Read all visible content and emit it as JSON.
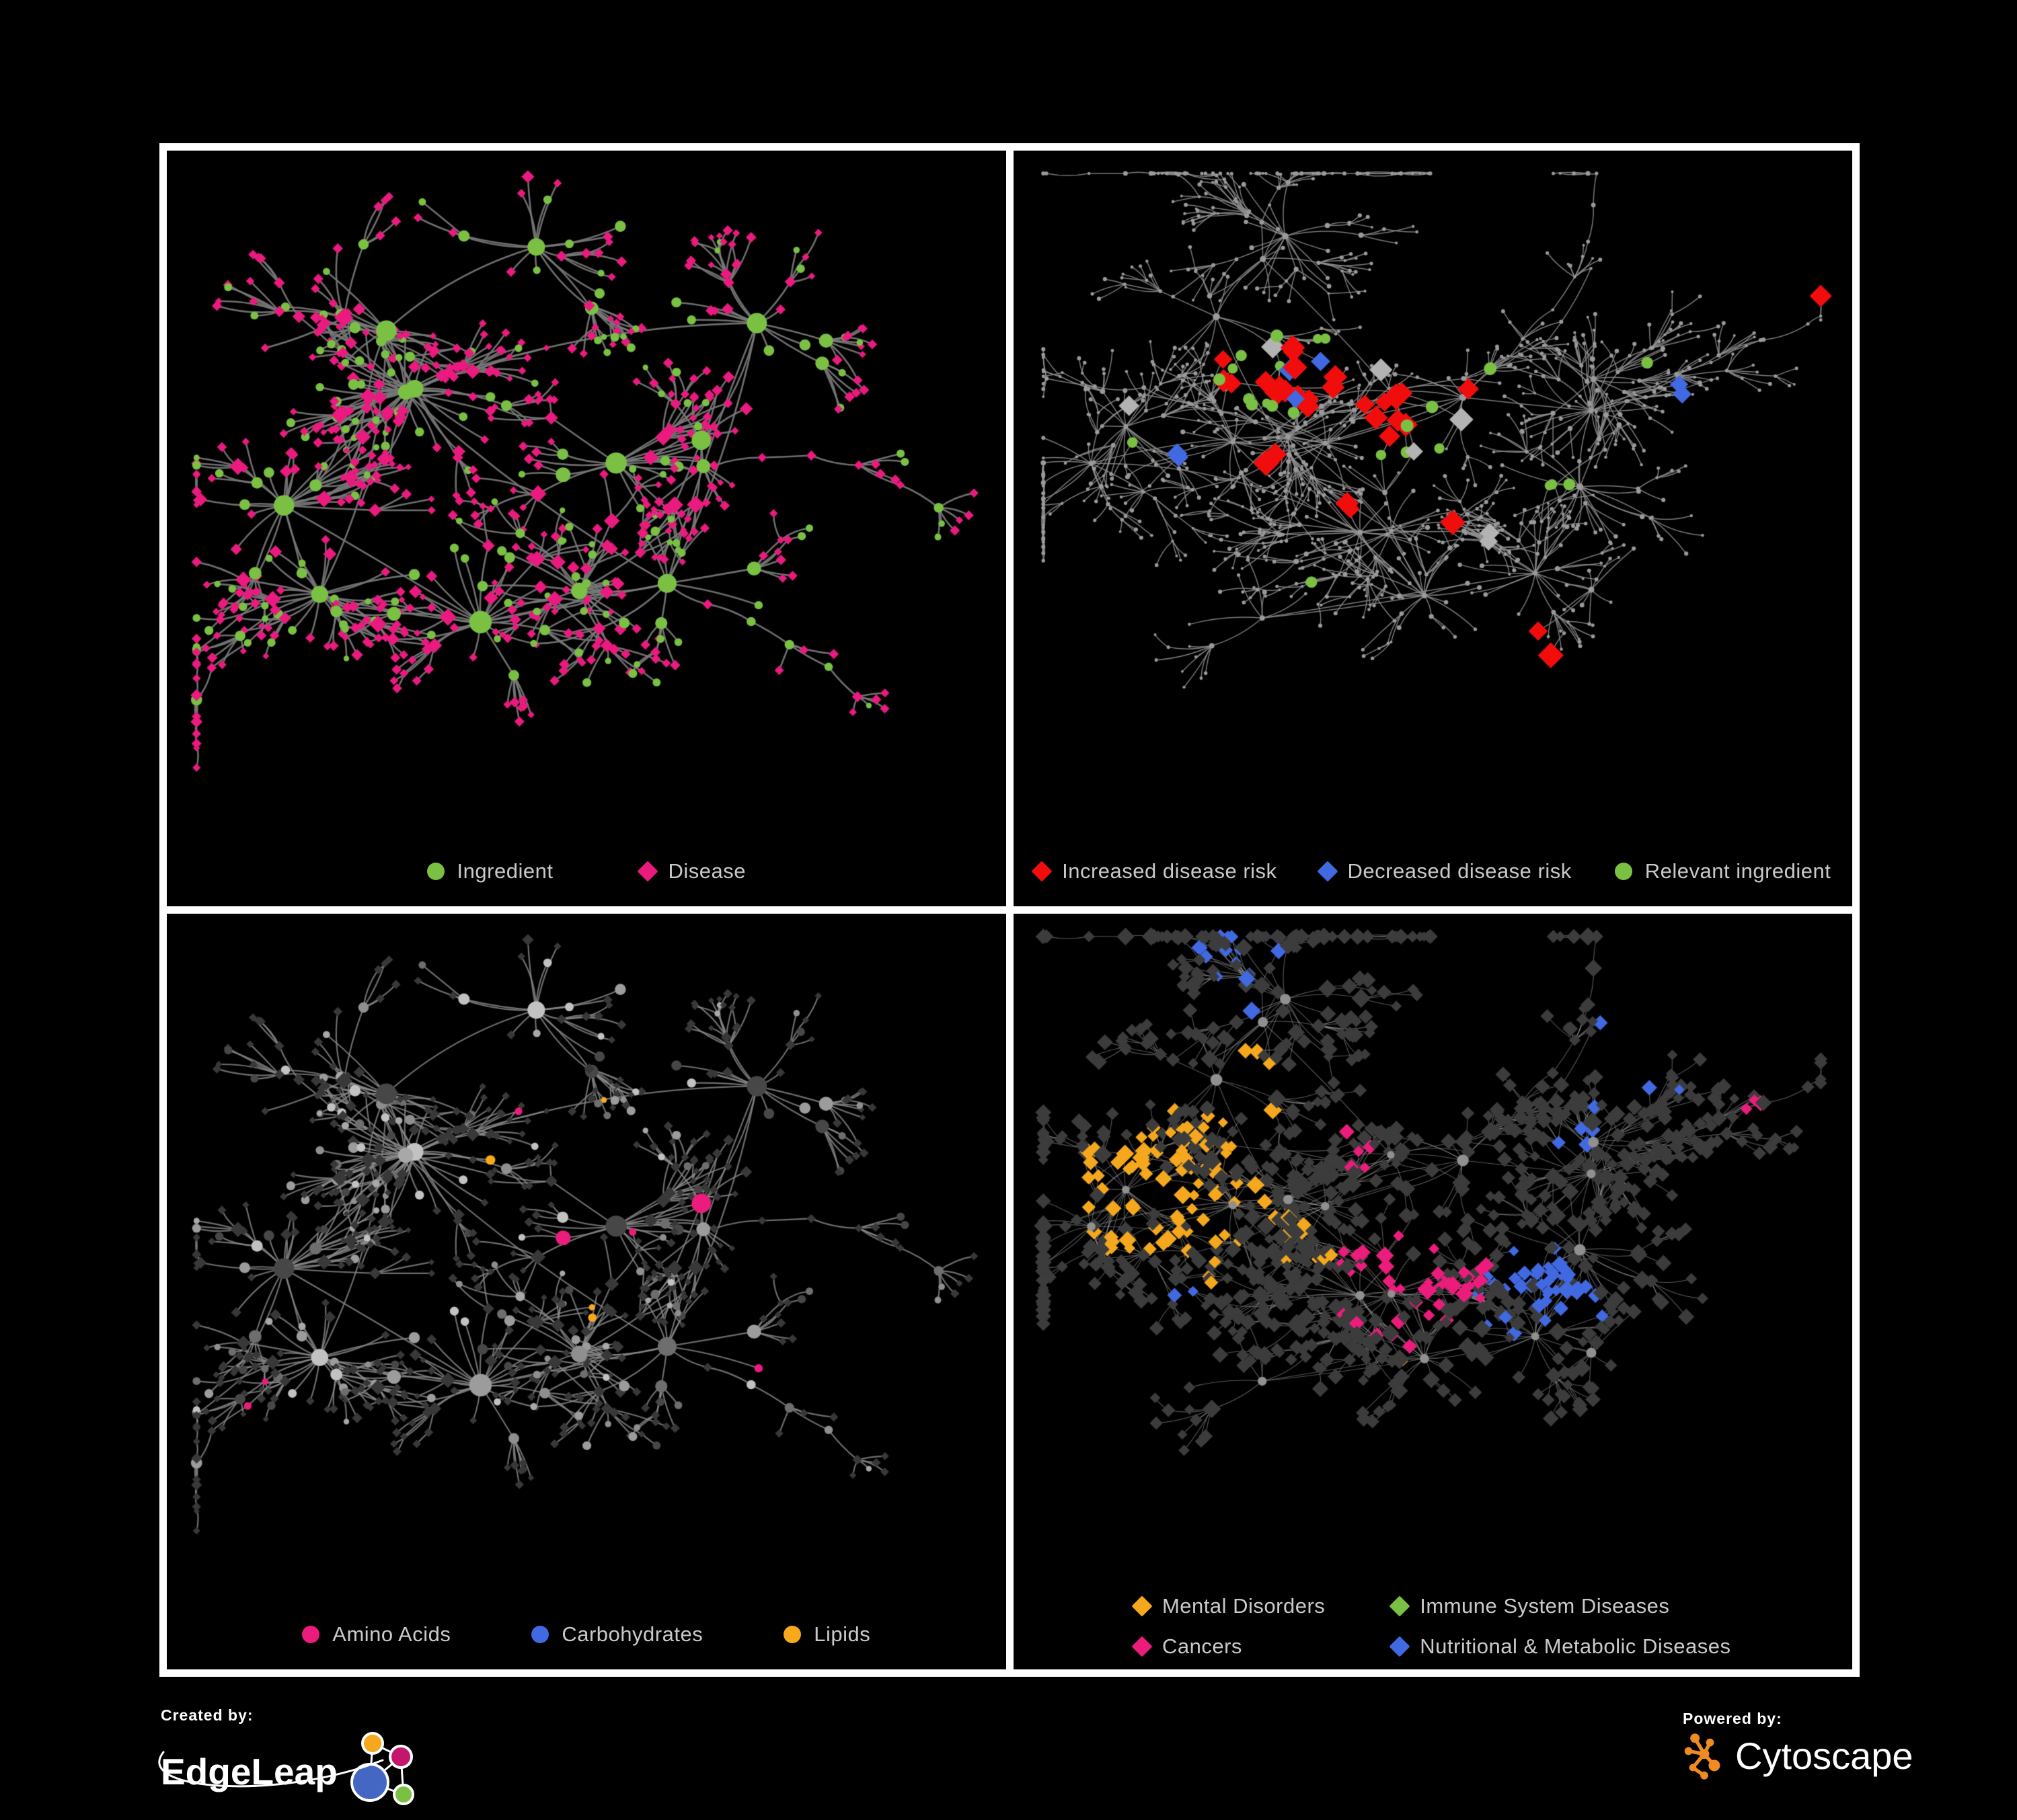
{
  "figure": {
    "background": "#000000",
    "frame_color": "#ffffff"
  },
  "footer": {
    "created_by_label": "Created by:",
    "edgeleap_name": "EdgeLeap",
    "powered_by_label": "Powered by:",
    "cytoscape_name": "Cytoscape",
    "edgeleap_colors": {
      "orange": "#F5A81D",
      "magenta": "#C4176B",
      "blue": "#4467C4",
      "green": "#7AC143"
    },
    "cytoscape_color": "#EF8B22"
  },
  "layouts": {
    "A": {
      "seed": 20417,
      "clusters": 13,
      "burst": 15,
      "r1": 0.085,
      "subProb": 0.34,
      "leaves": 7,
      "r2": 0.052,
      "twigProb": 0.16,
      "arms": 5,
      "crossLinks": 46,
      "hubLinks": 6,
      "aspect": 1.12,
      "circProb": {
        "hub": 0.85,
        "sub": 0.5,
        "mid": 0.4,
        "leaf": 0.22
      }
    },
    "B": {
      "seed": 91731,
      "clusters": 19,
      "burst": 10,
      "r1": 0.07,
      "subProb": 0.42,
      "leaves": 7,
      "r2": 0.05,
      "twigProb": 0.3,
      "arms": 7,
      "crossLinks": 60,
      "hubLinks": 7,
      "aspect": 1.12,
      "circProb": {
        "hub": 1,
        "sub": 0,
        "mid": 0,
        "leaf": 0
      }
    }
  },
  "chart_data": [
    {
      "type": "network",
      "panel": "top-left",
      "description": "Ingredient-disease association network; green circle nodes are ingredients, pink diamond nodes are diseases, gray edges are associations",
      "nodes_estimate": 620,
      "edges_estimate": 680,
      "legend": [
        {
          "label": "Ingredient",
          "shape": "circle",
          "color": "#7AC143"
        },
        {
          "label": "Disease",
          "shape": "diamond",
          "color": "#EA1A7F"
        }
      ],
      "legend_gap": 130,
      "render": {
        "layout": "A",
        "seed": 311,
        "mode": "type-color",
        "circle_color": "#7AC143",
        "diamond_color": "#EA1A7F",
        "sizes": {
          "hub": 13,
          "sub": 8.5,
          "mid": 6.5,
          "leaf": 5.2
        },
        "edge": {
          "color": "#787878",
          "width": 2.6,
          "alpha": 0.92
        }
      }
    },
    {
      "type": "network",
      "panel": "top-right",
      "description": "Disease-risk overlay network; highlighted diamonds show increased (red) / decreased (blue) disease risk, green circles are relevant ingredients, small gray dots are other nodes",
      "nodes_estimate": 840,
      "edges_estimate": 900,
      "legend": [
        {
          "label": "Increased disease risk",
          "shape": "diamond",
          "color": "#F20D0D"
        },
        {
          "label": "Decreased disease risk",
          "shape": "diamond",
          "color": "#4169E1"
        },
        {
          "label": "Relevant ingredient",
          "shape": "circle",
          "color": "#7AC143"
        }
      ],
      "legend_gap": 64,
      "render": {
        "layout": "B",
        "seed": 522,
        "mode": "highlight",
        "base_color": "#9a9a9a",
        "sizes": {
          "hub": 4.2,
          "sub": 3.2,
          "mid": 2.8,
          "leaf": 2.4
        },
        "edge": {
          "color": "#8f8f8f",
          "width": 1.5,
          "alpha": 0.85
        },
        "highlights": [
          {
            "shape": "diamond",
            "color": "#F20D0D",
            "size": 13,
            "groups": [
              [
                0.33,
                0.32,
                0.1,
                13
              ],
              [
                0.45,
                0.38,
                0.09,
                9
              ],
              [
                0.25,
                0.3,
                0.05,
                3
              ],
              [
                0.56,
                0.34,
                0.03,
                1
              ],
              [
                0.52,
                0.55,
                0.03,
                2
              ],
              [
                0.4,
                0.52,
                0.03,
                2
              ],
              [
                0.63,
                0.72,
                0.04,
                2
              ],
              [
                0.95,
                0.1,
                0.02,
                1
              ],
              [
                0.3,
                0.44,
                0.03,
                2
              ]
            ]
          },
          {
            "shape": "diamond",
            "color": "#4169E1",
            "size": 12,
            "groups": [
              [
                0.81,
                0.335,
                0.035,
                2
              ],
              [
                0.335,
                0.3,
                0.03,
                2
              ],
              [
                0.345,
                0.34,
                0.02,
                1
              ],
              [
                0.185,
                0.435,
                0.02,
                2
              ]
            ]
          },
          {
            "shape": "diamond",
            "color": "#B3B3B3",
            "size": 12,
            "groups": [
              [
                0.285,
                0.285,
                0.02,
                1
              ],
              [
                0.47,
                0.41,
                0.02,
                1
              ],
              [
                0.525,
                0.37,
                0.02,
                1
              ],
              [
                0.565,
                0.55,
                0.025,
                2
              ],
              [
                0.13,
                0.365,
                0.02,
                1
              ],
              [
                0.44,
                0.3,
                0.015,
                1
              ]
            ]
          },
          {
            "shape": "circle",
            "color": "#7AC143",
            "size": 8,
            "groups": [
              [
                0.3,
                0.3,
                0.12,
                13
              ],
              [
                0.47,
                0.4,
                0.07,
                5
              ],
              [
                0.655,
                0.47,
                0.025,
                3
              ],
              [
                0.78,
                0.295,
                0.015,
                1
              ],
              [
                0.345,
                0.625,
                0.02,
                1
              ],
              [
                0.145,
                0.4,
                0.015,
                1
              ],
              [
                0.57,
                0.3,
                0.02,
                2
              ]
            ]
          }
        ]
      }
    },
    {
      "type": "network",
      "panel": "bottom-left",
      "description": "Same ingredient-disease network colored by ingredient chemical class; uncolored ingredients gray, diseases dark gray diamonds",
      "nodes_estimate": 620,
      "edges_estimate": 680,
      "legend": [
        {
          "label": "Amino Acids",
          "shape": "circle",
          "color": "#EC1C7D"
        },
        {
          "label": "Carbohydrates",
          "shape": "circle",
          "color": "#4169E1"
        },
        {
          "label": "Lipids",
          "shape": "circle",
          "color": "#F8A81B"
        }
      ],
      "legend_gap": 120,
      "render": {
        "layout": "A",
        "seed": 733,
        "mode": "class-color",
        "diamond_color": "#383838",
        "gray_palette": [
          "#a8a8a8",
          "#8f8f8f",
          "#c2c2c2",
          "#6e6e6e",
          "#474747",
          "#9c9c9c"
        ],
        "sizes": {
          "hub": 13,
          "sub": 8.5,
          "mid": 6.5,
          "leaf": 5.2
        },
        "edge": {
          "color": "#8a8a8a",
          "width": 2.2,
          "alpha": 0.8
        },
        "classes": [
          {
            "name": "Lipids",
            "color": "#F8A81B",
            "regions": [
              [
                0.46,
                0.2,
                0.13,
                0.75
              ],
              [
                0.4,
                0.33,
                0.07,
                0.45
              ],
              [
                0.52,
                0.57,
                0.045,
                0.9
              ],
              [
                0.57,
                0.13,
                0.05,
                0.4
              ],
              [
                0.68,
                0.47,
                0.03,
                0.5
              ]
            ]
          },
          {
            "name": "Carbohydrates",
            "color": "#4169E1",
            "regions": [
              [
                0.44,
                0.19,
                0.09,
                0.22
              ],
              [
                0.12,
                0.3,
                0.03,
                0.5
              ],
              [
                0.63,
                0.6,
                0.025,
                0.6
              ],
              [
                0.3,
                0.47,
                0.02,
                0.5
              ]
            ]
          },
          {
            "name": "Amino Acids",
            "color": "#EC1C7D",
            "regions": [
              [
                0.5,
                0.5,
                0.9,
                0.045
              ],
              [
                0.7,
                0.62,
                0.08,
                0.25
              ],
              [
                0.25,
                0.75,
                0.07,
                0.2
              ],
              [
                0.88,
                0.08,
                0.05,
                0.4
              ]
            ]
          }
        ]
      }
    },
    {
      "type": "network",
      "panel": "bottom-right",
      "description": "Same disease network colored by disease category; uncategorized diseases dark gray diamonds, hubs light gray circles",
      "nodes_estimate": 840,
      "edges_estimate": 900,
      "legend": [
        {
          "label": "Mental Disorders",
          "shape": "diamond",
          "color": "#F5A81D"
        },
        {
          "label": "Immune System Diseases",
          "shape": "diamond",
          "color": "#7AC143"
        },
        {
          "label": "Cancers",
          "shape": "diamond",
          "color": "#EC1C7D"
        },
        {
          "label": "Nutritional & Metabolic Diseases",
          "shape": "diamond",
          "color": "#4169E1"
        }
      ],
      "legend_columns": 2,
      "legend_gap": 100,
      "legend_row_gap": 24,
      "render": {
        "layout": "B",
        "seed": 944,
        "mode": "class-diamond",
        "base_color": "#3C3C3C",
        "hub_color": "#909090",
        "sizes": {
          "hub": 7,
          "sub": 9,
          "mid": 8.5,
          "leaf": 7.5
        },
        "edge": {
          "color": "#aaaaaa",
          "width": 1.15,
          "alpha": 0.5
        },
        "classes": [
          {
            "name": "Mental Disorders",
            "color": "#F5A81D",
            "regions": [
              [
                0.17,
                0.4,
                0.145,
                0.9
              ],
              [
                0.28,
                0.22,
                0.07,
                0.45
              ],
              [
                0.34,
                0.47,
                0.05,
                0.5
              ],
              [
                0.1,
                0.62,
                0.035,
                0.6
              ],
              [
                0.47,
                0.63,
                0.02,
                0.7
              ],
              [
                0.58,
                0.05,
                0.03,
                0.5
              ]
            ]
          },
          {
            "name": "Cancers",
            "color": "#EC1C7D",
            "regions": [
              [
                0.47,
                0.52,
                0.11,
                0.85
              ],
              [
                0.41,
                0.32,
                0.05,
                0.3
              ],
              [
                0.92,
                0.27,
                0.05,
                0.65
              ],
              [
                0.26,
                0.78,
                0.025,
                0.5
              ],
              [
                0.64,
                0.7,
                0.03,
                0.3
              ],
              [
                0.12,
                0.25,
                0.02,
                0.5
              ]
            ]
          },
          {
            "name": "Nutritional & Metabolic Diseases",
            "color": "#4169E1",
            "regions": [
              [
                0.635,
                0.555,
                0.085,
                0.85
              ],
              [
                0.8,
                0.16,
                0.11,
                0.5
              ],
              [
                0.7,
                0.32,
                0.06,
                0.4
              ],
              [
                0.28,
                0.06,
                0.09,
                0.45
              ],
              [
                0.55,
                0.84,
                0.05,
                0.5
              ],
              [
                0.88,
                0.45,
                0.06,
                0.45
              ],
              [
                0.38,
                0.92,
                0.04,
                0.45
              ],
              [
                0.93,
                0.08,
                0.04,
                0.5
              ],
              [
                0.18,
                0.55,
                0.03,
                0.3
              ]
            ]
          },
          {
            "name": "Immune System Diseases",
            "color": "#7AC143",
            "regions": [
              [
                0.49,
                0.38,
                0.02,
                0.8
              ],
              [
                0.56,
                0.62,
                0.02,
                0.6
              ],
              [
                0.43,
                0.45,
                0.015,
                0.7
              ],
              [
                0.52,
                0.1,
                0.015,
                0.6
              ],
              [
                0.36,
                0.86,
                0.015,
                0.7
              ]
            ]
          }
        ]
      }
    }
  ]
}
